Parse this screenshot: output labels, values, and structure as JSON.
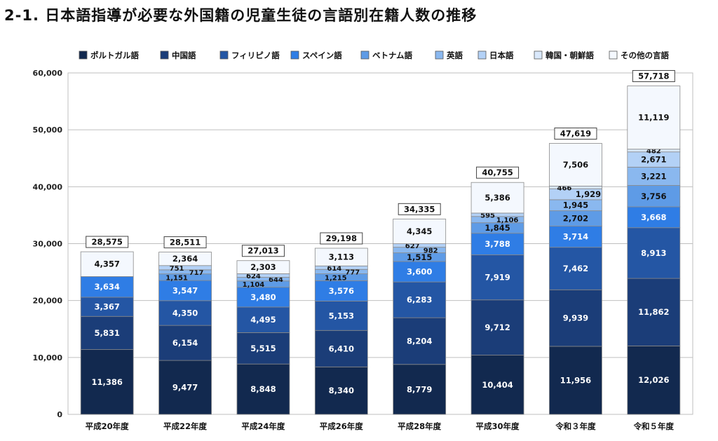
{
  "page": {
    "title": "2-1.  日本語指導が必要な外国籍の児童生徒の言語別在籍人数の推移"
  },
  "chart_data": {
    "type": "bar",
    "stacked": true,
    "categories": [
      "平成20年度",
      "平成22年度",
      "平成24年度",
      "平成26年度",
      "平成28年度",
      "平成30年度",
      "令和３年度",
      "令和５年度"
    ],
    "series": [
      {
        "name": "ポルトガル語",
        "color": "#12294f",
        "values": [
          11386,
          9477,
          8848,
          8340,
          8779,
          10404,
          11956,
          12026
        ]
      },
      {
        "name": "中国語",
        "color": "#1b3d78",
        "values": [
          5831,
          6154,
          5515,
          6410,
          8204,
          9712,
          9939,
          11862
        ]
      },
      {
        "name": "フィリピノ語",
        "color": "#2456a4",
        "values": [
          3367,
          4350,
          4495,
          5153,
          6283,
          7919,
          7462,
          8913
        ]
      },
      {
        "name": "スペイン語",
        "color": "#2f7de5",
        "values": [
          3634,
          3547,
          3480,
          3576,
          3600,
          3788,
          3714,
          3668
        ]
      },
      {
        "name": "ベトナム語",
        "color": "#5e9be6",
        "values": [
          null,
          1151,
          1104,
          1215,
          1515,
          1845,
          2702,
          3756
        ]
      },
      {
        "name": "英語",
        "color": "#8ab8ef",
        "values": [
          null,
          717,
          644,
          777,
          982,
          1106,
          1945,
          3221
        ]
      },
      {
        "name": "日本語",
        "color": "#b3d1f6",
        "values": [
          null,
          751,
          624,
          614,
          627,
          595,
          1929,
          2671
        ]
      },
      {
        "name": "韓国・朝鮮語",
        "color": "#d9e8fb",
        "values": [
          null,
          null,
          null,
          null,
          null,
          null,
          466,
          482
        ]
      },
      {
        "name": "その他の言語",
        "color": "#f4f8fe",
        "values": [
          4357,
          2364,
          2303,
          3113,
          4345,
          5386,
          7506,
          11119
        ]
      }
    ],
    "totals": [
      28575,
      28511,
      27013,
      29198,
      34335,
      40755,
      47619,
      57718
    ],
    "ylim": [
      0,
      60000
    ],
    "yticks": [
      0,
      10000,
      20000,
      30000,
      40000,
      50000,
      60000
    ],
    "ytick_labels": [
      "0",
      "10,000",
      "20,000",
      "30,000",
      "40,000",
      "50,000",
      "60,000"
    ],
    "grid": true,
    "legend_position": "top"
  }
}
